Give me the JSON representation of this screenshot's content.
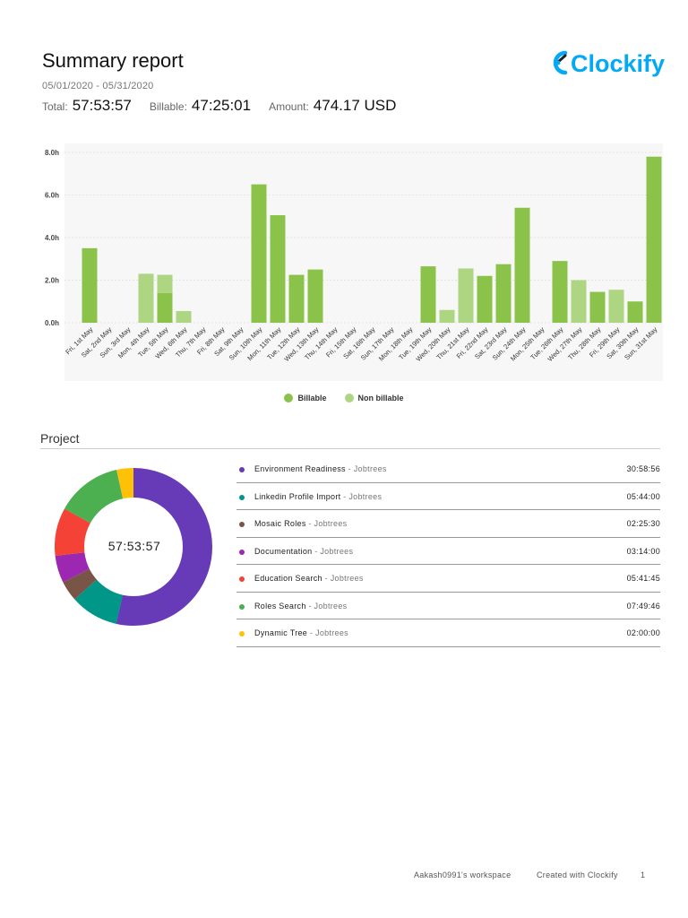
{
  "header": {
    "title": "Summary report",
    "date_range": "05/01/2020 - 05/31/2020",
    "total_label": "Total:",
    "total_value": "57:53:57",
    "billable_label": "Billable:",
    "billable_value": "47:25:01",
    "amount_label": "Amount:",
    "amount_value": "474.17 USD"
  },
  "logo": {
    "text": "Clockify",
    "color": "#03a9f4"
  },
  "chart_data": {
    "type": "bar",
    "stacked": true,
    "categories": [
      "Fri, 1st May",
      "Sat, 2nd May",
      "Sun, 3rd May",
      "Mon, 4th May",
      "Tue, 5th May",
      "Wed, 6th May",
      "Thu, 7th May",
      "Fri, 8th May",
      "Sat, 9th May",
      "Sun, 10th May",
      "Mon, 11th May",
      "Tue, 12th May",
      "Wed, 13th May",
      "Thu, 14th May",
      "Fri, 15th May",
      "Sat, 16th May",
      "Sun, 17th May",
      "Mon, 18th May",
      "Tue, 19th May",
      "Wed, 20th May",
      "Thu, 21st May",
      "Fri, 22nd May",
      "Sat, 23rd May",
      "Sun, 24th May",
      "Mon, 25th May",
      "Tue, 26th May",
      "Wed, 27th May",
      "Thu, 28th May",
      "Fri, 29th May",
      "Sat, 30th May",
      "Sun, 31st May"
    ],
    "series": [
      {
        "name": "Billable",
        "color": "#8bc34a",
        "values": [
          3.5,
          0,
          0,
          0,
          1.4,
          0,
          0,
          0,
          0,
          6.5,
          5.05,
          2.25,
          2.5,
          0,
          0,
          0,
          0,
          0,
          2.65,
          0,
          0,
          2.2,
          2.75,
          5.4,
          0,
          2.9,
          0,
          1.45,
          0,
          1.0,
          7.8
        ]
      },
      {
        "name": "Non billable",
        "color": "#aed581",
        "values": [
          0,
          0,
          0,
          2.3,
          0.85,
          0.55,
          0,
          0,
          0,
          0,
          0,
          0,
          0,
          0,
          0,
          0,
          0,
          0,
          0,
          0.6,
          2.55,
          0,
          0,
          0,
          0,
          0,
          2.0,
          0,
          1.55,
          0,
          0
        ]
      }
    ],
    "y_ticks": [
      "0.0h",
      "2.0h",
      "4.0h",
      "6.0h",
      "8.0h"
    ],
    "ylim": [
      0,
      8
    ],
    "grid": true,
    "legend_position": "bottom-center"
  },
  "legend": {
    "billable": "Billable",
    "non_billable": "Non billable"
  },
  "project_section": {
    "title": "Project",
    "total": "57:53:57",
    "projects": [
      {
        "name": "Environment Readiness",
        "client": " - Jobtrees",
        "time": "30:58:56",
        "hours": 30.982,
        "color": "#673ab7"
      },
      {
        "name": "Linkedin Profile Import",
        "client": " - Jobtrees",
        "time": "05:44:00",
        "hours": 5.733,
        "color": "#009688"
      },
      {
        "name": "Mosaic Roles",
        "client": " - Jobtrees",
        "time": "02:25:30",
        "hours": 2.425,
        "color": "#795548"
      },
      {
        "name": "Documentation",
        "client": " - Jobtrees",
        "time": "03:14:00",
        "hours": 3.233,
        "color": "#9c27b0"
      },
      {
        "name": "Education Search",
        "client": " - Jobtrees",
        "time": "05:41:45",
        "hours": 5.696,
        "color": "#f44336"
      },
      {
        "name": "Roles Search",
        "client": " - Jobtrees",
        "time": "07:49:46",
        "hours": 7.829,
        "color": "#4caf50"
      },
      {
        "name": "Dynamic Tree",
        "client": " - Jobtrees",
        "time": "02:00:00",
        "hours": 2.0,
        "color": "#ffc107"
      }
    ]
  },
  "footer": {
    "workspace": "Aakash0991's workspace",
    "created_with": "Created with Clockify",
    "page": "1"
  }
}
